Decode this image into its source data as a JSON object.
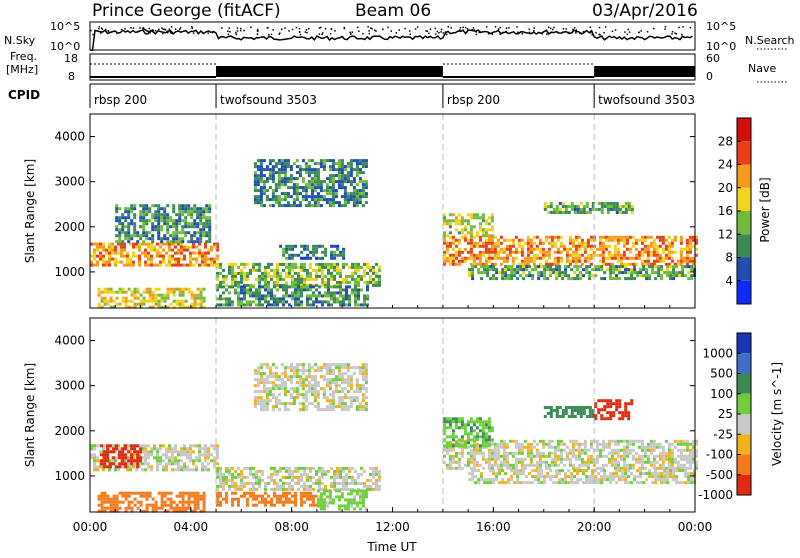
{
  "header": {
    "station": "Prince George (fitACF)",
    "beam": "Beam 06",
    "date": "03/Apr/2016"
  },
  "noise_panel": {
    "left_label": "N.Sky",
    "right_label": "N.Search",
    "left_ticks": [
      "10^5",
      "10^0"
    ],
    "right_ticks": [
      "10^5",
      "10^0"
    ]
  },
  "freq_panel": {
    "left_label_1": "Freq.",
    "left_label_2": "[MHz]",
    "right_label": "Nave",
    "left_ticks": [
      "18",
      "8"
    ],
    "right_ticks": [
      "60",
      "0"
    ]
  },
  "cpid_panel": {
    "label": "CPID",
    "segments": [
      {
        "name": "rbsp 200",
        "start_h": 0
      },
      {
        "name": "twofsound 3503",
        "start_h": 5
      },
      {
        "name": "rbsp 200",
        "start_h": 14
      },
      {
        "name": "twofsound 3503",
        "start_h": 20
      }
    ],
    "boundaries_h": [
      5,
      14,
      20
    ]
  },
  "chart_data": [
    {
      "type": "heatmap",
      "title": "",
      "xlabel": "Time UT",
      "ylabel": "Slant Range [km]",
      "xlim": [
        0,
        24
      ],
      "ylim": [
        200,
        4500
      ],
      "x_ticks": [
        "00:00",
        "04:00",
        "08:00",
        "12:00",
        "16:00",
        "20:00",
        "00:00"
      ],
      "y_ticks": [
        1000,
        2000,
        3000,
        4000
      ],
      "colorbar": {
        "label": "Power [dB]",
        "ticks": [
          4,
          8,
          12,
          16,
          20,
          24,
          28
        ],
        "colors": [
          "#0d2bff",
          "#1f4fb5",
          "#3b8a55",
          "#6fbb3a",
          "#f2d21b",
          "#f59a1c",
          "#e8401a",
          "#d40d0d"
        ]
      },
      "bands": [
        {
          "x": [
            0.0,
            5.0
          ],
          "y": [
            1150,
            1650
          ],
          "value": 22
        },
        {
          "x": [
            0.3,
            4.5
          ],
          "y": [
            250,
            650
          ],
          "value": 18
        },
        {
          "x": [
            1.0,
            4.8
          ],
          "y": [
            1650,
            2500
          ],
          "value": 10
        },
        {
          "x": [
            5.0,
            11.5
          ],
          "y": [
            700,
            1200
          ],
          "value": 14
        },
        {
          "x": [
            5.0,
            11.0
          ],
          "y": [
            300,
            700
          ],
          "value": 10
        },
        {
          "x": [
            6.5,
            11.0
          ],
          "y": [
            2500,
            3500
          ],
          "value": 9
        },
        {
          "x": [
            7.5,
            10.0
          ],
          "y": [
            1300,
            1600
          ],
          "value": 8
        },
        {
          "x": [
            14.0,
            24.0
          ],
          "y": [
            1150,
            1800
          ],
          "value": 22
        },
        {
          "x": [
            14.0,
            16.0
          ],
          "y": [
            1800,
            2300
          ],
          "value": 16
        },
        {
          "x": [
            15.0,
            24.0
          ],
          "y": [
            850,
            1150
          ],
          "value": 12
        },
        {
          "x": [
            18.0,
            21.5
          ],
          "y": [
            2300,
            2550
          ],
          "value": 12
        }
      ]
    },
    {
      "type": "heatmap",
      "title": "",
      "xlabel": "Time UT",
      "ylabel": "Slant Range [km]",
      "xlim": [
        0,
        24
      ],
      "ylim": [
        200,
        4500
      ],
      "x_ticks": [
        "00:00",
        "04:00",
        "08:00",
        "12:00",
        "16:00",
        "20:00",
        "00:00"
      ],
      "y_ticks": [
        1000,
        2000,
        3000,
        4000
      ],
      "colorbar": {
        "label": "Velocity [m s^-1]",
        "ticks": [
          1000,
          500,
          100,
          25,
          -25,
          -100,
          -500,
          -1000
        ],
        "colors": [
          "#1a35b8",
          "#3f6fc6",
          "#3a8a55",
          "#6fcf3a",
          "#c8c8c8",
          "#f2b21b",
          "#f57a1c",
          "#e02a10"
        ]
      },
      "bands": [
        {
          "x": [
            0.0,
            5.0
          ],
          "y": [
            1150,
            1700
          ],
          "value": 0
        },
        {
          "x": [
            0.4,
            2.0
          ],
          "y": [
            1200,
            1700
          ],
          "value": -700
        },
        {
          "x": [
            0.3,
            4.5
          ],
          "y": [
            250,
            650
          ],
          "value": -150
        },
        {
          "x": [
            5.0,
            11.5
          ],
          "y": [
            700,
            1200
          ],
          "value": 0
        },
        {
          "x": [
            5.0,
            9.0
          ],
          "y": [
            350,
            650
          ],
          "value": -150
        },
        {
          "x": [
            9.0,
            11.0
          ],
          "y": [
            300,
            700
          ],
          "value": 60
        },
        {
          "x": [
            6.5,
            11.0
          ],
          "y": [
            2500,
            3500
          ],
          "value": 0
        },
        {
          "x": [
            14.0,
            24.0
          ],
          "y": [
            1150,
            1800
          ],
          "value": 0
        },
        {
          "x": [
            14.0,
            16.0
          ],
          "y": [
            1700,
            2300
          ],
          "value": 80
        },
        {
          "x": [
            15.0,
            24.0
          ],
          "y": [
            850,
            1150
          ],
          "value": 0
        },
        {
          "x": [
            18.0,
            20.0
          ],
          "y": [
            2300,
            2550
          ],
          "value": 400
        },
        {
          "x": [
            20.0,
            21.5
          ],
          "y": [
            2300,
            2700
          ],
          "value": -600
        }
      ]
    }
  ]
}
